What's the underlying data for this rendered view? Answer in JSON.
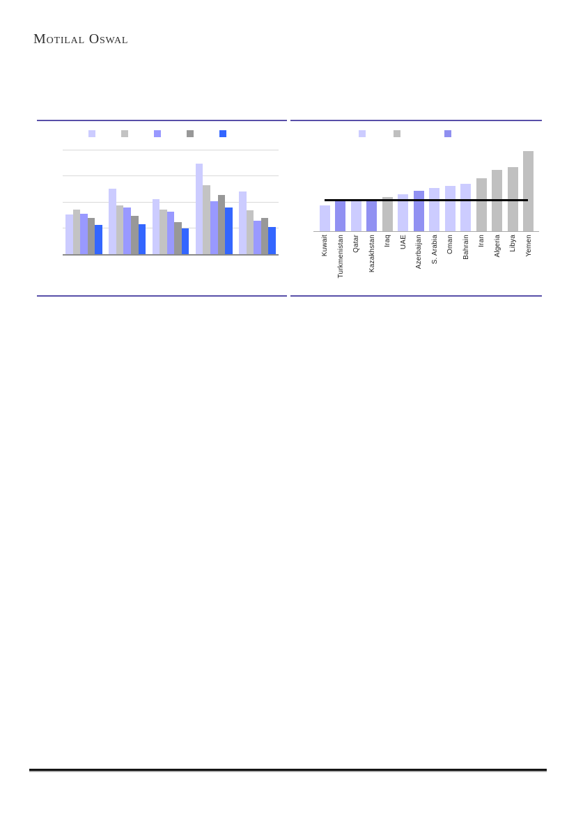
{
  "page": {
    "logo_text": "Motilal Oswal",
    "accent_border_color": "#584FA8",
    "footer_rule_color": "#161616"
  },
  "chart_data": [
    {
      "id": "left-grouped-bar-chart",
      "type": "bar",
      "title": "",
      "note": "grouped bar chart; no axis, category or legend text visible; values are relative heights where 100 = full plot height",
      "categories": [
        "",
        "",
        "",
        "",
        ""
      ],
      "series": [
        {
          "name": "series-1-lavender",
          "color": "#CCCCFF",
          "values": [
            38,
            63,
            53,
            87,
            60
          ]
        },
        {
          "name": "series-2-light-gray",
          "color": "#C3C3C3",
          "values": [
            43,
            47,
            43,
            66,
            42
          ]
        },
        {
          "name": "series-3-purple",
          "color": "#9999FF",
          "values": [
            39,
            45,
            41,
            51,
            32
          ]
        },
        {
          "name": "series-4-dark-gray",
          "color": "#989898",
          "values": [
            35,
            37,
            31,
            57,
            35
          ]
        },
        {
          "name": "series-5-blue",
          "color": "#3366FF",
          "values": [
            28,
            29,
            25,
            45,
            26
          ]
        }
      ],
      "ylim": [
        0,
        100
      ],
      "grid": true,
      "gridline_levels": [
        25,
        50,
        75,
        100
      ],
      "legend_position": "top",
      "legend_labels_visible": false
    },
    {
      "id": "right-country-bar-chart",
      "type": "bar",
      "title": "",
      "note": "one bar per country sorted ascending with black horizontal reference line; no value axis visible; values are relative heights where 100 = full plot height",
      "categories": [
        "Kuwait",
        "Turkmenistan",
        "Qatar",
        "Kazakhstan",
        "Iraq",
        "UAE",
        "Azerbaijan",
        "S. Arabia",
        "Oman",
        "Bahrain",
        "Iran",
        "Algeria",
        "Libya",
        "Yemen"
      ],
      "values": [
        31,
        36,
        38,
        38,
        41,
        44,
        48,
        52,
        54,
        57,
        63,
        73,
        77,
        96
      ],
      "bar_colors": [
        "#CCCCFF",
        "#9191F2",
        "#CCCCFF",
        "#9191F2",
        "#C0C0C0",
        "#CCCCFF",
        "#9191F2",
        "#CCCCFF",
        "#CCCCFF",
        "#CCCCFF",
        "#C0C0C0",
        "#C0C0C0",
        "#C0C0C0",
        "#C0C0C0"
      ],
      "reference_line": {
        "value": 36,
        "color": "#000000"
      },
      "legend_swatches": [
        {
          "name": "legend-swatch-lavender",
          "color": "#CCCCFF"
        },
        {
          "name": "legend-swatch-gray",
          "color": "#BFBFBF"
        },
        {
          "name": "legend-swatch-purple",
          "color": "#8F8FF0"
        }
      ],
      "ylim": [
        0,
        100
      ],
      "grid": false,
      "legend_position": "top",
      "legend_labels_visible": false
    }
  ]
}
